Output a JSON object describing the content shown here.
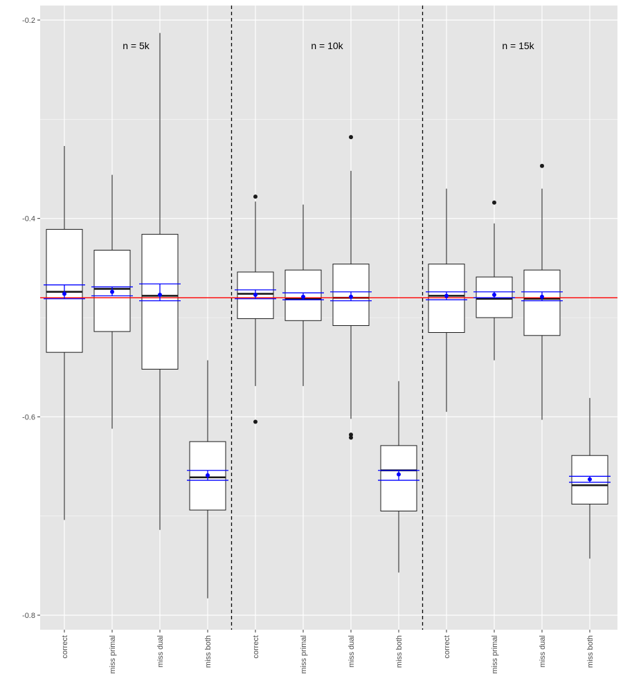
{
  "chart_data": {
    "type": "boxplot",
    "title": "",
    "xlabel": "",
    "ylabel": "",
    "ylim": [
      -0.815,
      -0.185
    ],
    "yticks": [
      -0.8,
      -0.6,
      -0.4,
      -0.2
    ],
    "ytick_labels": [
      "-0.8",
      "-0.6",
      "-0.4",
      "-0.2"
    ],
    "reference_line": {
      "y": -0.48,
      "color": "#ff0000"
    },
    "colors": {
      "panel_bg": "#e5e5e5",
      "grid": "#ffffff",
      "box_fill": "#ffffff",
      "box_stroke": "#1a1a1a",
      "mean": "#0000ff",
      "separator": "#000000"
    },
    "groups": [
      {
        "label": "n = 5k",
        "boxes": [
          {
            "category": "correct",
            "whisker_low": -0.704,
            "q1": -0.535,
            "median": -0.474,
            "q3": -0.411,
            "whisker_high": -0.327,
            "outliers": [],
            "mean": -0.476,
            "ci_low": -0.481,
            "ci_high": -0.467
          },
          {
            "category": "miss primal",
            "whisker_low": -0.612,
            "q1": -0.514,
            "median": -0.471,
            "q3": -0.432,
            "whisker_high": -0.356,
            "outliers": [],
            "mean": -0.474,
            "ci_low": -0.478,
            "ci_high": -0.469
          },
          {
            "category": "miss dual",
            "whisker_low": -0.714,
            "q1": -0.552,
            "median": -0.478,
            "q3": -0.416,
            "whisker_high": -0.213,
            "outliers": [],
            "mean": -0.477,
            "ci_low": -0.483,
            "ci_high": -0.466
          },
          {
            "category": "miss both",
            "whisker_low": -0.783,
            "q1": -0.694,
            "median": -0.661,
            "q3": -0.625,
            "whisker_high": -0.543,
            "outliers": [],
            "mean": -0.659,
            "ci_low": -0.664,
            "ci_high": -0.654
          }
        ]
      },
      {
        "label": "n = 10k",
        "boxes": [
          {
            "category": "correct",
            "whisker_low": -0.569,
            "q1": -0.501,
            "median": -0.476,
            "q3": -0.454,
            "whisker_high": -0.383,
            "outliers": [
              -0.605,
              -0.378
            ],
            "mean": -0.477,
            "ci_low": -0.481,
            "ci_high": -0.472
          },
          {
            "category": "miss primal",
            "whisker_low": -0.569,
            "q1": -0.503,
            "median": -0.481,
            "q3": -0.452,
            "whisker_high": -0.386,
            "outliers": [],
            "mean": -0.479,
            "ci_low": -0.482,
            "ci_high": -0.475
          },
          {
            "category": "miss dual",
            "whisker_low": -0.602,
            "q1": -0.508,
            "median": -0.48,
            "q3": -0.446,
            "whisker_high": -0.352,
            "outliers": [
              -0.618,
              -0.621,
              -0.318
            ],
            "mean": -0.479,
            "ci_low": -0.483,
            "ci_high": -0.474
          },
          {
            "category": "miss both",
            "whisker_low": -0.757,
            "q1": -0.695,
            "median": -0.654,
            "q3": -0.629,
            "whisker_high": -0.564,
            "outliers": [],
            "mean": -0.658,
            "ci_low": -0.664,
            "ci_high": -0.654
          }
        ]
      },
      {
        "label": "n = 15k",
        "boxes": [
          {
            "category": "correct",
            "whisker_low": -0.595,
            "q1": -0.515,
            "median": -0.478,
            "q3": -0.446,
            "whisker_high": -0.37,
            "outliers": [],
            "mean": -0.478,
            "ci_low": -0.482,
            "ci_high": -0.474
          },
          {
            "category": "miss primal",
            "whisker_low": -0.543,
            "q1": -0.5,
            "median": -0.481,
            "q3": -0.459,
            "whisker_high": -0.405,
            "outliers": [
              -0.384
            ],
            "mean": -0.477,
            "ci_low": -0.48,
            "ci_high": -0.474
          },
          {
            "category": "miss dual",
            "whisker_low": -0.603,
            "q1": -0.518,
            "median": -0.481,
            "q3": -0.452,
            "whisker_high": -0.37,
            "outliers": [
              -0.347
            ],
            "mean": -0.479,
            "ci_low": -0.483,
            "ci_high": -0.474
          },
          {
            "category": "miss both",
            "whisker_low": -0.743,
            "q1": -0.688,
            "median": -0.669,
            "q3": -0.639,
            "whisker_high": -0.581,
            "outliers": [],
            "mean": -0.663,
            "ci_low": -0.666,
            "ci_high": -0.66
          }
        ]
      }
    ]
  }
}
